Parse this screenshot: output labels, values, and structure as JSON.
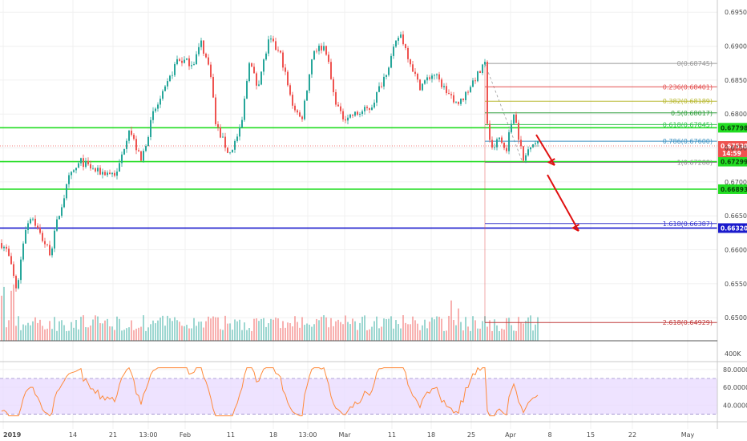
{
  "chart_data": {
    "type": "candlestick",
    "price_axis": {
      "ticks": [
        "0.69500",
        "0.69000",
        "0.68500",
        "0.68000",
        "0.67500",
        "0.67000",
        "0.66500",
        "0.66000",
        "0.65500",
        "0.65000"
      ],
      "range": [
        0.6466,
        0.6968
      ]
    },
    "x_labels": [
      "2019",
      "14",
      "21",
      "13:00",
      "Feb",
      "11",
      "18",
      "13:00",
      "Mar",
      "11",
      "18",
      "25",
      "Apr",
      "8",
      "15",
      "22",
      "May"
    ],
    "horizontal_levels": [
      {
        "price": 0.67798,
        "label": "0.67798",
        "color": "#22dd22"
      },
      {
        "price": 0.67299,
        "label": "0.67299",
        "color": "#22dd22"
      },
      {
        "price": 0.66893,
        "label": "0.66893",
        "color": "#22dd22"
      },
      {
        "price": 0.6632,
        "label": "0.66320",
        "color": "#1a1acc"
      }
    ],
    "current_price": {
      "label": "0.67530",
      "countdown": "14:59",
      "price": 0.6753
    },
    "fibonacci": [
      {
        "ratio": 0,
        "label": "0(0.68745)",
        "price": 0.68745,
        "color": "#999999"
      },
      {
        "ratio": 0.236,
        "label": "0.236(0.68401)",
        "price": 0.68401,
        "color": "#e35050"
      },
      {
        "ratio": 0.382,
        "label": "0.382(0.68189)",
        "price": 0.68189,
        "color": "#b8b830"
      },
      {
        "ratio": 0.5,
        "label": "0.5(0.68017)",
        "price": 0.68017,
        "color": "#2e9e3a"
      },
      {
        "ratio": 0.618,
        "label": "0.618(0.67845)",
        "price": 0.67845,
        "color": "#2ec24a"
      },
      {
        "ratio": 0.786,
        "label": "0.786(0.67600)",
        "price": 0.676,
        "color": "#3a8fc0"
      },
      {
        "ratio": 1,
        "label": "1(0.67288)",
        "price": 0.67288,
        "color": "#888888"
      },
      {
        "ratio": 1.618,
        "label": "1.618(0.66387)",
        "price": 0.66387,
        "color": "#3333cc"
      },
      {
        "ratio": 2.618,
        "label": "2.618(0.64929)",
        "price": 0.64929,
        "color": "#c03a3a"
      }
    ],
    "volume_axis_label": "400K",
    "rsi": {
      "ticks": [
        "80.0000",
        "60.0000",
        "40.0000"
      ],
      "range": [
        25,
        88
      ],
      "upper": 70,
      "lower": 30
    },
    "colors": {
      "up": "#26a69a",
      "down": "#ef5350",
      "rsi_line": "#ff8a3a",
      "rsi_band": "#eadcff"
    }
  }
}
